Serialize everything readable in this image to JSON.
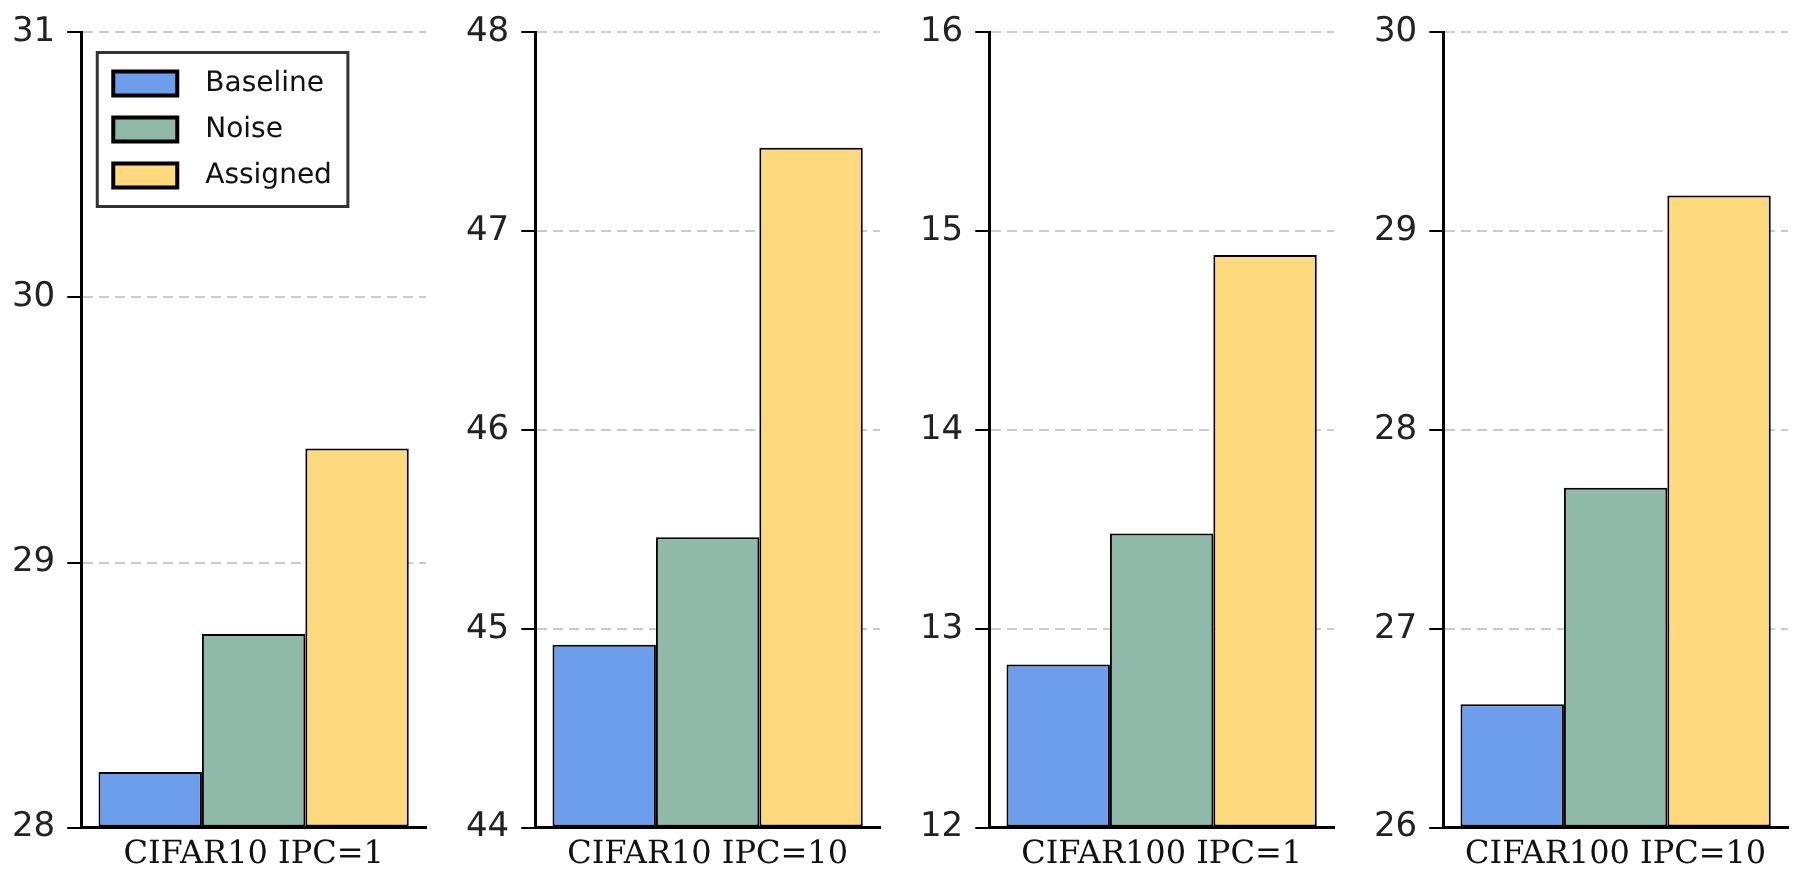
{
  "chart_data": [
    {
      "type": "bar",
      "categories": [
        null
      ],
      "xlabel": "CIFAR10 IPC=1",
      "ylim": [
        28,
        31
      ],
      "yticks": [
        28,
        29,
        30,
        31
      ],
      "grid": "y",
      "legend": "top left",
      "series": [
        {
          "name": "Baseline",
          "color": "#6d9eeb",
          "values": [
            28.21
          ]
        },
        {
          "name": "Noise",
          "color": "#8fb9a8",
          "values": [
            28.73
          ]
        },
        {
          "name": "Assigned",
          "color": "#ffd97d",
          "values": [
            29.43
          ]
        }
      ]
    },
    {
      "type": "bar",
      "categories": [
        null
      ],
      "xlabel": "CIFAR10 IPC=10",
      "ylim": [
        44,
        48
      ],
      "yticks": [
        44,
        45,
        46,
        47,
        48
      ],
      "grid": "y",
      "series": [
        {
          "color": "#6d9eeb",
          "values": [
            44.92
          ]
        },
        {
          "color": "#8fb9a8",
          "values": [
            45.46
          ]
        },
        {
          "color": "#ffd97d",
          "values": [
            47.42
          ]
        }
      ]
    },
    {
      "type": "bar",
      "categories": [
        null
      ],
      "xlabel": "CIFAR100 IPC=1",
      "ylim": [
        12,
        16
      ],
      "yticks": [
        12,
        13,
        14,
        15,
        16
      ],
      "grid": "y",
      "series": [
        {
          "color": "#6d9eeb",
          "values": [
            12.82
          ]
        },
        {
          "color": "#8fb9a8",
          "values": [
            13.48
          ]
        },
        {
          "color": "#ffd97d",
          "values": [
            14.88
          ]
        }
      ]
    },
    {
      "type": "bar",
      "categories": [
        null
      ],
      "xlabel": "CIFAR100 IPC=10",
      "ylim": [
        26,
        30
      ],
      "yticks": [
        26,
        27,
        28,
        29,
        30
      ],
      "grid": "y",
      "series": [
        {
          "color": "#6d9eeb",
          "values": [
            26.62
          ]
        },
        {
          "color": "#8fb9a8",
          "values": [
            27.71
          ]
        },
        {
          "color": "#ffd97d",
          "values": [
            29.18
          ]
        }
      ]
    }
  ]
}
